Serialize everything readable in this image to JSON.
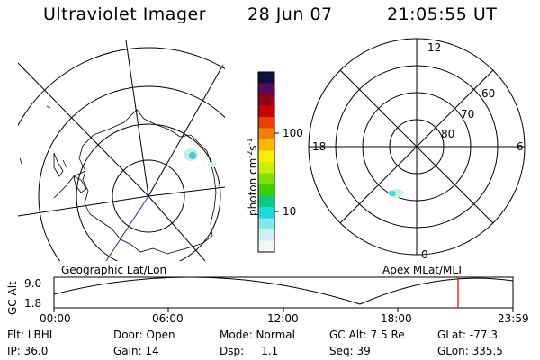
{
  "header": {
    "instrument": "Ultraviolet Imager",
    "date": "28 Jun 07",
    "time": "21:05:55 UT"
  },
  "geographic_map": {
    "title": "Geographic Lat/Lon"
  },
  "apex_map": {
    "title": "Apex MLat/MLT",
    "mlt_labels": {
      "top": "12",
      "left": "18",
      "right": "6",
      "bottom": "0"
    },
    "mlat_labels": [
      "60",
      "70",
      "80"
    ]
  },
  "colorbar": {
    "unit_label": "photon cm",
    "unit_exp1": "-2",
    "unit_s": "s",
    "unit_exp2": "-1",
    "tick_labels": [
      "100",
      "10"
    ],
    "colors": [
      "#101040",
      "#5a0a5a",
      "#900018",
      "#c80000",
      "#e84000",
      "#f08000",
      "#f8b800",
      "#f8f000",
      "#c8f000",
      "#80e000",
      "#40d000",
      "#10c880",
      "#20d8d8",
      "#80e8e8",
      "#d0f0f0",
      "#f0f8f8"
    ]
  },
  "altitude_plot": {
    "ylabel": "GC Alt",
    "y_ticks": [
      "9.0",
      "1.8"
    ],
    "x_ticks": [
      "00:00",
      "06:00",
      "12:00",
      "18:00",
      "23:59"
    ],
    "current_marker_color": "#e00000"
  },
  "info": {
    "flt": "Flt: LBHL",
    "ip": "IP: 36.0",
    "door": "Door: Open",
    "gain": "Gain: 14",
    "mode": "Mode: Normal",
    "dsp": "Dsp:     1.1",
    "gc_alt": "GC Alt: 7.5 Re",
    "seq": "Seq: 39",
    "glat": "GLat: -77.3",
    "glon": "GLon: 335.5"
  }
}
